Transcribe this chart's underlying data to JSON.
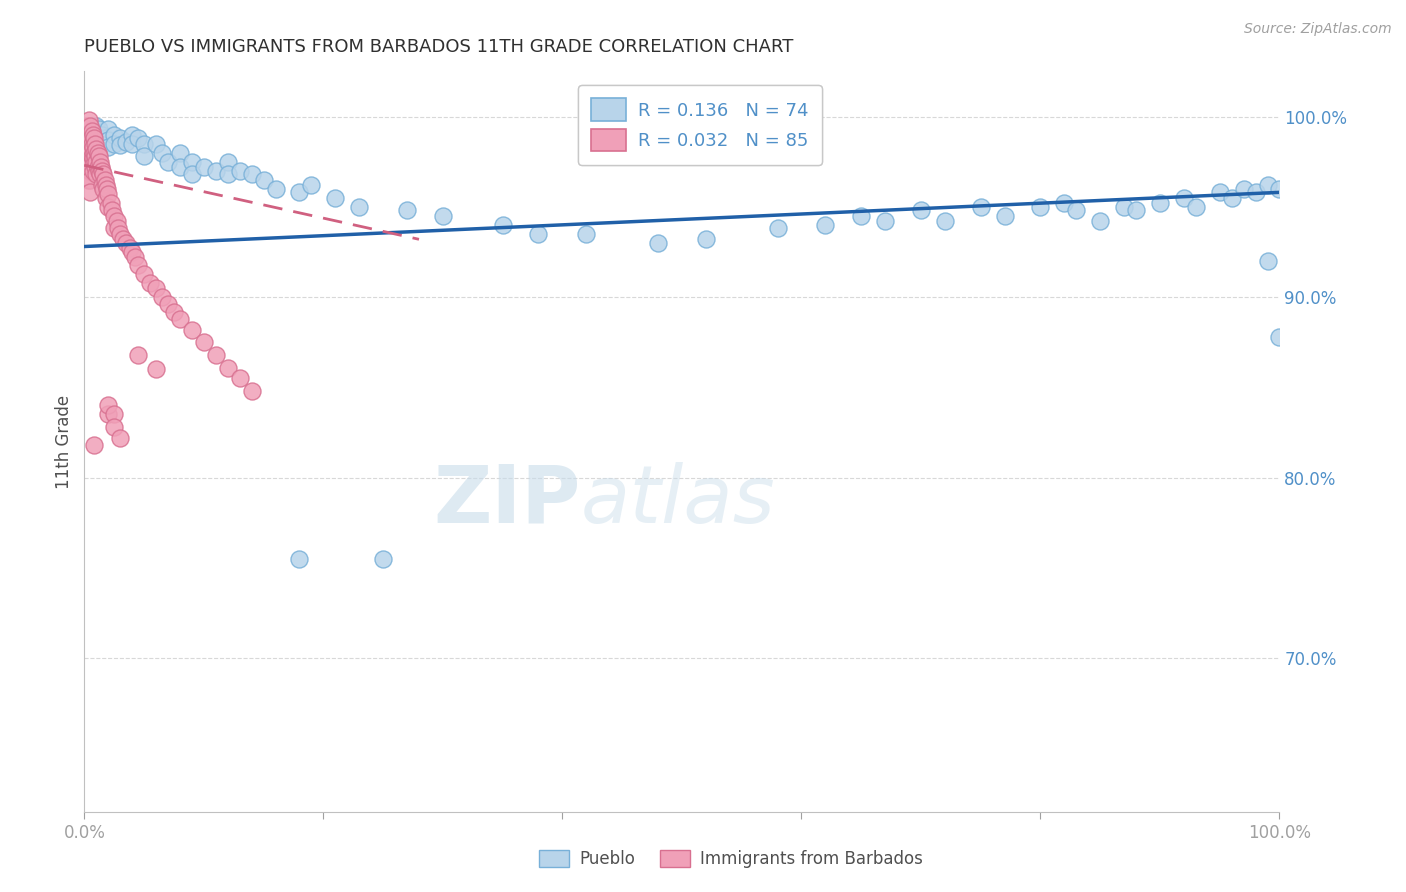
{
  "title": "PUEBLO VS IMMIGRANTS FROM BARBADOS 11TH GRADE CORRELATION CHART",
  "source_text": "Source: ZipAtlas.com",
  "ylabel": "11th Grade",
  "watermark_zip": "ZIP",
  "watermark_atlas": "atlas",
  "xmin": 0.0,
  "xmax": 1.0,
  "ymin": 0.615,
  "ymax": 1.025,
  "blue_R": 0.136,
  "blue_N": 74,
  "pink_R": 0.032,
  "pink_N": 85,
  "legend_label_blue": "Pueblo",
  "legend_label_pink": "Immigrants from Barbados",
  "blue_fill": "#b8d4ea",
  "blue_edge": "#78b0d8",
  "pink_fill": "#f0a0b8",
  "pink_edge": "#d87090",
  "blue_line_color": "#2060a8",
  "pink_line_color": "#d06080",
  "title_color": "#303030",
  "tick_color_y": "#5090c8",
  "tick_color_x": "#a0a0a0",
  "grid_color": "#d8d8d8",
  "blue_line_x": [
    0.0,
    1.0
  ],
  "blue_line_y": [
    0.928,
    0.958
  ],
  "pink_line_x": [
    0.0,
    0.28
  ],
  "pink_line_y": [
    0.973,
    0.932
  ],
  "blue_x": [
    0.005,
    0.008,
    0.01,
    0.01,
    0.012,
    0.015,
    0.015,
    0.018,
    0.02,
    0.02,
    0.02,
    0.025,
    0.025,
    0.03,
    0.03,
    0.035,
    0.04,
    0.04,
    0.045,
    0.05,
    0.05,
    0.06,
    0.065,
    0.07,
    0.08,
    0.08,
    0.09,
    0.09,
    0.1,
    0.11,
    0.12,
    0.12,
    0.13,
    0.14,
    0.15,
    0.16,
    0.18,
    0.19,
    0.21,
    0.23,
    0.27,
    0.3,
    0.35,
    0.38,
    0.42,
    0.48,
    0.52,
    0.58,
    0.62,
    0.65,
    0.67,
    0.7,
    0.72,
    0.75,
    0.77,
    0.8,
    0.82,
    0.83,
    0.85,
    0.87,
    0.88,
    0.9,
    0.92,
    0.93,
    0.95,
    0.96,
    0.97,
    0.98,
    0.99,
    1.0,
    0.99,
    1.0,
    0.18,
    0.25
  ],
  "blue_y": [
    0.99,
    0.985,
    0.995,
    0.988,
    0.993,
    0.99,
    0.985,
    0.988,
    0.993,
    0.987,
    0.983,
    0.99,
    0.985,
    0.988,
    0.984,
    0.986,
    0.99,
    0.985,
    0.988,
    0.985,
    0.978,
    0.985,
    0.98,
    0.975,
    0.98,
    0.972,
    0.975,
    0.968,
    0.972,
    0.97,
    0.975,
    0.968,
    0.97,
    0.968,
    0.965,
    0.96,
    0.958,
    0.962,
    0.955,
    0.95,
    0.948,
    0.945,
    0.94,
    0.935,
    0.935,
    0.93,
    0.932,
    0.938,
    0.94,
    0.945,
    0.942,
    0.948,
    0.942,
    0.95,
    0.945,
    0.95,
    0.952,
    0.948,
    0.942,
    0.95,
    0.948,
    0.952,
    0.955,
    0.95,
    0.958,
    0.955,
    0.96,
    0.958,
    0.962,
    0.96,
    0.92,
    0.878,
    0.755,
    0.755
  ],
  "pink_x": [
    0.002,
    0.002,
    0.002,
    0.003,
    0.003,
    0.003,
    0.004,
    0.004,
    0.004,
    0.004,
    0.004,
    0.005,
    0.005,
    0.005,
    0.005,
    0.005,
    0.005,
    0.005,
    0.006,
    0.006,
    0.006,
    0.007,
    0.007,
    0.007,
    0.007,
    0.008,
    0.008,
    0.008,
    0.009,
    0.009,
    0.009,
    0.01,
    0.01,
    0.01,
    0.011,
    0.011,
    0.012,
    0.012,
    0.013,
    0.013,
    0.014,
    0.015,
    0.015,
    0.016,
    0.016,
    0.017,
    0.018,
    0.018,
    0.019,
    0.02,
    0.02,
    0.022,
    0.023,
    0.025,
    0.025,
    0.027,
    0.028,
    0.03,
    0.032,
    0.035,
    0.038,
    0.04,
    0.042,
    0.045,
    0.05,
    0.055,
    0.06,
    0.065,
    0.07,
    0.075,
    0.08,
    0.09,
    0.1,
    0.11,
    0.12,
    0.13,
    0.14,
    0.045,
    0.06,
    0.02,
    0.02,
    0.025,
    0.025,
    0.03,
    0.008
  ],
  "pink_y": [
    0.995,
    0.988,
    0.982,
    0.975,
    0.97,
    0.965,
    0.998,
    0.99,
    0.984,
    0.978,
    0.972,
    0.995,
    0.988,
    0.982,
    0.975,
    0.97,
    0.965,
    0.958,
    0.992,
    0.985,
    0.978,
    0.99,
    0.983,
    0.977,
    0.97,
    0.988,
    0.98,
    0.974,
    0.985,
    0.978,
    0.972,
    0.982,
    0.975,
    0.968,
    0.98,
    0.972,
    0.978,
    0.97,
    0.975,
    0.968,
    0.972,
    0.97,
    0.962,
    0.968,
    0.96,
    0.965,
    0.962,
    0.955,
    0.96,
    0.957,
    0.95,
    0.952,
    0.948,
    0.945,
    0.938,
    0.942,
    0.938,
    0.935,
    0.932,
    0.93,
    0.927,
    0.925,
    0.922,
    0.918,
    0.913,
    0.908,
    0.905,
    0.9,
    0.896,
    0.892,
    0.888,
    0.882,
    0.875,
    0.868,
    0.861,
    0.855,
    0.848,
    0.868,
    0.86,
    0.835,
    0.84,
    0.835,
    0.828,
    0.822,
    0.818
  ]
}
